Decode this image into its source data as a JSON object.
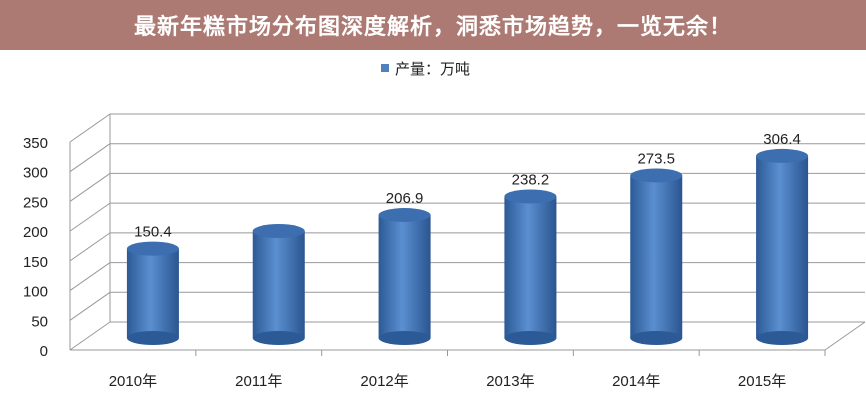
{
  "banner": {
    "text": "最新年糕市场分布图深度解析，洞悉市场趋势，一览无余！"
  },
  "chart_data": {
    "type": "bar",
    "title": "",
    "categories": [
      "2010年",
      "2011年",
      "2012年",
      "2013年",
      "2014年",
      "2015年"
    ],
    "series": [
      {
        "name": "产量：万吨",
        "values": [
          150.4,
          180,
          206.9,
          238.2,
          273.5,
          306.4
        ]
      }
    ],
    "data_labels": [
      "150.4",
      "",
      "206.9",
      "238.2",
      "273.5",
      "306.4"
    ],
    "ylim": [
      0,
      350
    ],
    "yticks": [
      0,
      50,
      100,
      150,
      200,
      250,
      300,
      350
    ],
    "grid": true,
    "legend": "top",
    "colors": {
      "bar": "#4f81bd",
      "bar_dark": "#2c5a96"
    }
  }
}
